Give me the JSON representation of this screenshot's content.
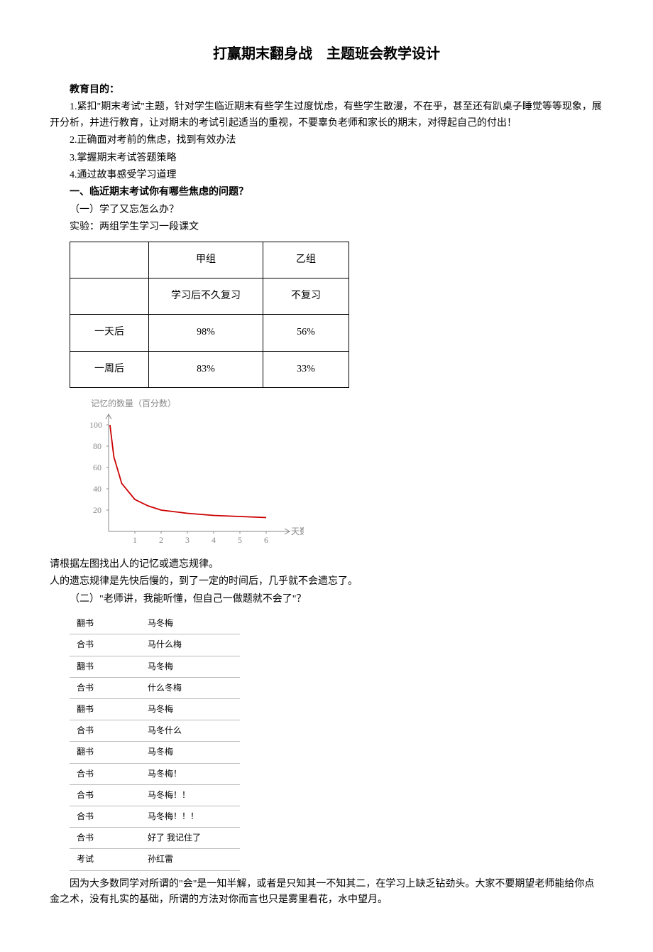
{
  "title": "打赢期末翻身战　主题班会教学设计",
  "section_goal_label": "教育目的：",
  "goals": {
    "g1": "1.紧扣\"期末考试\"主题，针对学生临近期末有些学生过度忧虑，有些学生散漫，不在乎，甚至还有趴桌子睡觉等等现象，展开分析，并进行教育，让对期末的考试引起适当的重视，不要辜负老师和家长的期末，对得起自己的付出！",
    "g2": "2.正确面对考前的焦虑，找到有效办法",
    "g3": "3.掌握期末考试答题策略",
    "g4": "4.通过故事感受学习道理"
  },
  "section1_heading": "一、临近期末考试你有哪些焦虑的问题？",
  "sub1_heading": "（一）学了又忘怎么办？",
  "experiment_label": "实验：两组学生学习一段课文",
  "table1": {
    "h0": "",
    "h1": "甲组",
    "h2": "乙组",
    "r1c0": "",
    "r1c1": "学习后不久复习",
    "r1c2": "不复习",
    "r2c0": "一天后",
    "r2c1": "98%",
    "r2c2": "56%",
    "r3c0": "一周后",
    "r3c1": "83%",
    "r3c2": "33%"
  },
  "chart": {
    "ylabel": "记忆的数量（百分数）",
    "xlabel": "天数",
    "yticks": [
      "100",
      "80",
      "60",
      "40",
      "20"
    ],
    "xticks": [
      "1",
      "2",
      "3",
      "4",
      "5",
      "6"
    ],
    "curve_color": "#cc0000",
    "axis_color": "#888888",
    "ylim": [
      0,
      110
    ],
    "xlim": [
      0,
      6.5
    ],
    "points": [
      [
        0.05,
        100
      ],
      [
        0.2,
        70
      ],
      [
        0.5,
        45
      ],
      [
        1,
        30
      ],
      [
        1.5,
        24
      ],
      [
        2,
        20
      ],
      [
        3,
        17
      ],
      [
        4,
        15
      ],
      [
        5,
        14
      ],
      [
        6,
        13
      ]
    ]
  },
  "after_chart_line1": "请根据左图找出人的记忆或遗忘规律。",
  "after_chart_line2": "人的遗忘规律是先快后慢的，到了一定的时间后，几乎就不会遗忘了。",
  "sub2_heading": "（二）\"老师讲，我能听懂，但自己一做题就不会了\"？",
  "table2": {
    "rows": [
      [
        "翻书",
        "马冬梅"
      ],
      [
        "合书",
        "马什么梅"
      ],
      [
        "翻书",
        "马冬梅"
      ],
      [
        "合书",
        "什么冬梅"
      ],
      [
        "翻书",
        "马冬梅"
      ],
      [
        "合书",
        "马冬什么"
      ],
      [
        "翻书",
        "马冬梅"
      ],
      [
        "合书",
        "马冬梅！"
      ],
      [
        "合书",
        "马冬梅！！"
      ],
      [
        "合书",
        "马冬梅！！！"
      ],
      [
        "合书",
        "好了 我记住了"
      ],
      [
        "考试",
        "孙红雷"
      ]
    ]
  },
  "closing": "因为大多数同学对所谓的\"会\"是一知半解，或者是只知其一不知其二，在学习上缺乏钻劲头。大家不要期望老师能给你点金之术，没有扎实的基础，所谓的方法对你而言也只是雾里看花，水中望月。"
}
